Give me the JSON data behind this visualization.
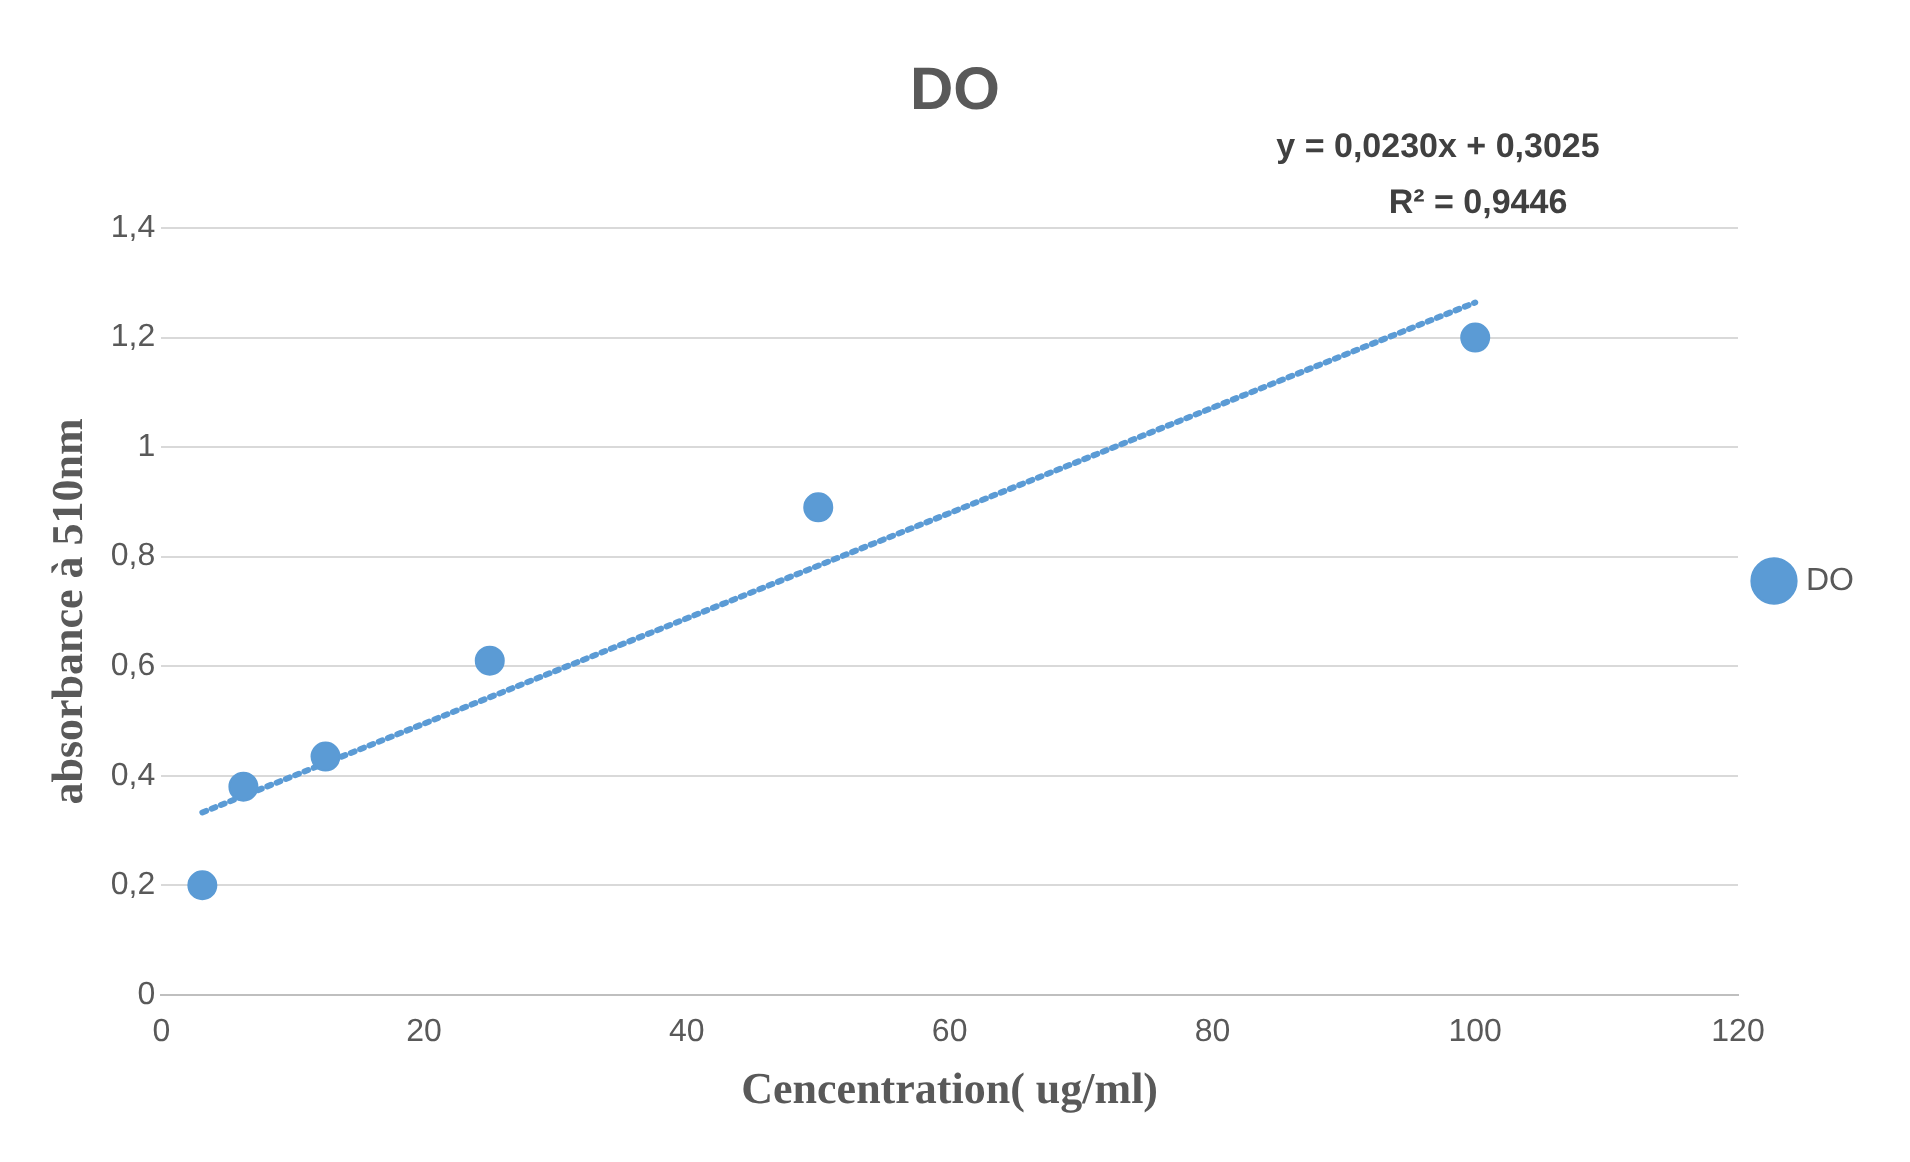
{
  "chart_data": {
    "type": "scatter",
    "title": "DO",
    "xlabel": "Cencentration( ug/ml)",
    "ylabel": "absorbance à 510nm",
    "x": [
      3.125,
      6.25,
      12.5,
      25,
      50,
      100
    ],
    "series": [
      {
        "name": "DO",
        "color": "#5b9bd5",
        "values": [
          0.2,
          0.38,
          0.435,
          0.61,
          0.89,
          1.2
        ],
        "marker": "circle"
      },
      {
        "type": "line",
        "x": [
          3.125,
          100
        ],
        "color": "#5b9bd5",
        "values": [
          0.333,
          1.264
        ],
        "line_style": "dotted",
        "marker": "none"
      }
    ],
    "xlim": [
      0,
      120
    ],
    "xticks": [
      0,
      20,
      40,
      60,
      80,
      100,
      120
    ],
    "ylim": [
      0,
      1.4
    ],
    "yticks": [
      {
        "value": 0,
        "label": "0"
      },
      {
        "value": 0.2,
        "label": "0,2"
      },
      {
        "value": 0.4,
        "label": "0,4"
      },
      {
        "value": 0.6,
        "label": "0,6"
      },
      {
        "value": 0.8,
        "label": "0,8"
      },
      {
        "value": 1,
        "label": "1"
      },
      {
        "value": 1.2,
        "label": "1,2"
      },
      {
        "value": 1.4,
        "label": "1,4"
      }
    ],
    "grid": "y",
    "legend": "right",
    "annotations": [
      "y = 0,0230x + 0,3025",
      "R² = 0,9446"
    ]
  }
}
